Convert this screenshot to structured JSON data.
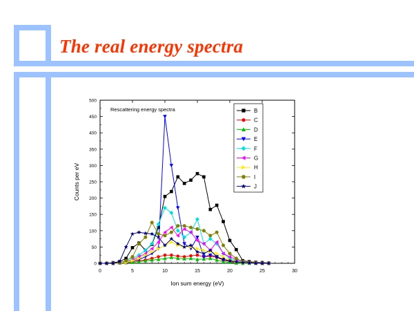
{
  "slide": {
    "title": "The real energy spectra"
  },
  "chart_data": {
    "type": "line",
    "title": "Rescattering energy spectra",
    "xlabel": "Ion sum energy (eV)",
    "ylabel": "Counts per eV",
    "xlim": [
      0,
      30
    ],
    "ylim": [
      0,
      500
    ],
    "xticks": [
      "0",
      "5",
      "10",
      "15",
      "20",
      "25",
      "30"
    ],
    "yticks": [
      "0",
      "50",
      "100",
      "150",
      "200",
      "250",
      "300",
      "350",
      "400",
      "450",
      "500"
    ],
    "legend_position": "top-right",
    "grid": false,
    "x": [
      0,
      1,
      2,
      3,
      4,
      5,
      6,
      7,
      8,
      9,
      10,
      11,
      12,
      13,
      14,
      15,
      16,
      17,
      18,
      19,
      20,
      21,
      22,
      23,
      24,
      25,
      26
    ],
    "series": [
      {
        "name": "B",
        "color": "#000000",
        "marker": "square",
        "values": [
          0,
          0,
          2,
          5,
          15,
          48,
          62,
          40,
          58,
          110,
          205,
          220,
          265,
          245,
          255,
          275,
          265,
          165,
          178,
          128,
          70,
          42,
          8,
          5,
          3,
          2,
          1
        ]
      },
      {
        "name": "C",
        "color": "#ff0000",
        "marker": "circle",
        "values": [
          0,
          0,
          0,
          1,
          3,
          5,
          8,
          10,
          15,
          20,
          25,
          25,
          22,
          20,
          23,
          25,
          20,
          22,
          18,
          10,
          5,
          3,
          1,
          0,
          0,
          0,
          0
        ]
      },
      {
        "name": "D",
        "color": "#00c000",
        "marker": "triangle-up",
        "values": [
          0,
          0,
          0,
          1,
          2,
          3,
          5,
          8,
          10,
          12,
          15,
          18,
          15,
          14,
          15,
          12,
          13,
          15,
          10,
          5,
          3,
          1,
          0,
          0,
          0,
          0,
          0
        ]
      },
      {
        "name": "E",
        "color": "#0000ff",
        "marker": "triangle-down",
        "values": [
          0,
          0,
          0,
          2,
          5,
          8,
          12,
          20,
          30,
          45,
          450,
          300,
          170,
          60,
          45,
          80,
          20,
          25,
          20,
          12,
          8,
          5,
          2,
          1,
          0,
          0,
          0
        ]
      },
      {
        "name": "F",
        "color": "#00e0e0",
        "marker": "diamond",
        "values": [
          0,
          0,
          0,
          1,
          5,
          15,
          25,
          40,
          60,
          120,
          170,
          155,
          100,
          80,
          95,
          135,
          60,
          75,
          60,
          30,
          15,
          8,
          3,
          1,
          0,
          0,
          0
        ]
      },
      {
        "name": "G",
        "color": "#ff00ff",
        "marker": "triangle-left",
        "values": [
          0,
          0,
          0,
          1,
          4,
          10,
          20,
          30,
          45,
          65,
          95,
          110,
          85,
          105,
          95,
          70,
          60,
          40,
          65,
          30,
          20,
          12,
          5,
          2,
          1,
          0,
          0
        ]
      },
      {
        "name": "H",
        "color": "#ffee00",
        "marker": "triangle-right",
        "values": [
          0,
          0,
          0,
          1,
          3,
          8,
          15,
          25,
          35,
          45,
          55,
          65,
          55,
          50,
          50,
          45,
          40,
          35,
          30,
          20,
          10,
          5,
          2,
          1,
          0,
          0,
          0
        ]
      },
      {
        "name": "I",
        "color": "#808000",
        "marker": "hexagon",
        "values": [
          0,
          0,
          0,
          2,
          8,
          20,
          60,
          80,
          125,
          90,
          85,
          95,
          115,
          115,
          110,
          105,
          100,
          85,
          95,
          55,
          30,
          15,
          5,
          2,
          1,
          0,
          0
        ]
      },
      {
        "name": "J",
        "color": "#000080",
        "marker": "star",
        "values": [
          0,
          0,
          0,
          5,
          50,
          90,
          95,
          92,
          90,
          80,
          55,
          75,
          60,
          50,
          55,
          35,
          30,
          40,
          20,
          12,
          8,
          5,
          2,
          1,
          0,
          0,
          0
        ]
      }
    ]
  }
}
